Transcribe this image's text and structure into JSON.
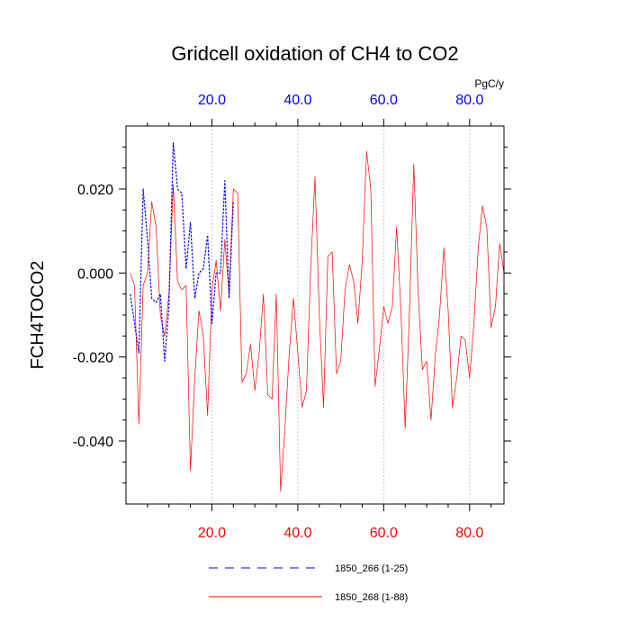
{
  "chart_data": {
    "type": "line",
    "title": "Gridcell oxidation of CH4 to CO2",
    "ylabel": "FCH4TOCO2",
    "units_label": "PgC/y",
    "xlim": [
      0,
      88
    ],
    "ylim": [
      -0.055,
      0.035
    ],
    "y_ticks": [
      0.02,
      0.0,
      -0.02,
      -0.04
    ],
    "y_tick_labels": [
      "0.020",
      "0.000",
      "-0.020",
      "-0.040"
    ],
    "x_ticks": [
      20,
      40,
      60,
      80
    ],
    "x_tick_labels_top": [
      "20.0",
      "40.0",
      "60.0",
      "80.0"
    ],
    "x_tick_labels_bottom": [
      "20.0",
      "40.0",
      "60.0",
      "80.0"
    ],
    "colors": {
      "series1": "#0000ff",
      "series2": "#ff0000",
      "grid": "#999999"
    },
    "series": [
      {
        "name": "1850_266 (1-25)",
        "style": "dashed",
        "x": [
          1,
          2,
          3,
          4,
          5,
          6,
          7,
          8,
          9,
          10,
          11,
          12,
          13,
          14,
          15,
          16,
          17,
          18,
          19,
          20,
          21,
          22,
          23,
          24,
          25
        ],
        "values": [
          -0.005,
          -0.012,
          -0.019,
          0.02,
          0.008,
          -0.006,
          -0.007,
          -0.005,
          -0.021,
          -0.008,
          0.031,
          0.02,
          0.019,
          0.001,
          0.012,
          -0.006,
          0.0,
          0.001,
          0.009,
          -0.012,
          0.0,
          0.0,
          0.022,
          -0.006,
          0.017
        ]
      },
      {
        "name": "1850_268 (1-88)",
        "style": "solid",
        "x": [
          1,
          2,
          3,
          4,
          5,
          6,
          7,
          8,
          9,
          10,
          11,
          12,
          13,
          14,
          15,
          16,
          17,
          18,
          19,
          20,
          21,
          22,
          23,
          24,
          25,
          26,
          27,
          28,
          29,
          30,
          31,
          32,
          33,
          34,
          35,
          36,
          37,
          38,
          39,
          40,
          41,
          42,
          43,
          44,
          45,
          46,
          47,
          48,
          49,
          50,
          51,
          52,
          53,
          54,
          55,
          56,
          57,
          58,
          59,
          60,
          61,
          62,
          63,
          64,
          65,
          66,
          67,
          68,
          69,
          70,
          71,
          72,
          73,
          74,
          75,
          76,
          77,
          78,
          79,
          80,
          81,
          82,
          83,
          84,
          85,
          86,
          87,
          88
        ],
        "values": [
          0.0,
          -0.003,
          -0.036,
          -0.003,
          0.0,
          0.017,
          0.011,
          -0.01,
          -0.015,
          -0.005,
          0.021,
          -0.002,
          -0.004,
          -0.003,
          -0.047,
          -0.025,
          -0.009,
          -0.015,
          -0.034,
          -0.004,
          0.003,
          -0.009,
          0.008,
          -0.005,
          0.02,
          0.019,
          -0.026,
          -0.024,
          -0.017,
          -0.028,
          -0.019,
          -0.005,
          -0.029,
          -0.03,
          -0.005,
          -0.052,
          -0.037,
          -0.019,
          -0.006,
          -0.019,
          -0.032,
          -0.028,
          0.001,
          0.023,
          -0.01,
          -0.032,
          0.004,
          0.005,
          -0.024,
          -0.021,
          -0.004,
          0.002,
          -0.002,
          -0.012,
          0.003,
          0.029,
          0.02,
          -0.027,
          -0.018,
          -0.008,
          -0.012,
          -0.008,
          0.011,
          -0.009,
          -0.037,
          -0.009,
          0.026,
          -0.004,
          -0.023,
          -0.021,
          -0.035,
          -0.02,
          -0.01,
          0.006,
          -0.009,
          -0.032,
          -0.025,
          -0.015,
          -0.016,
          -0.025,
          -0.012,
          0.006,
          0.016,
          0.011,
          -0.013,
          -0.008,
          0.007,
          0.0
        ]
      }
    ]
  }
}
